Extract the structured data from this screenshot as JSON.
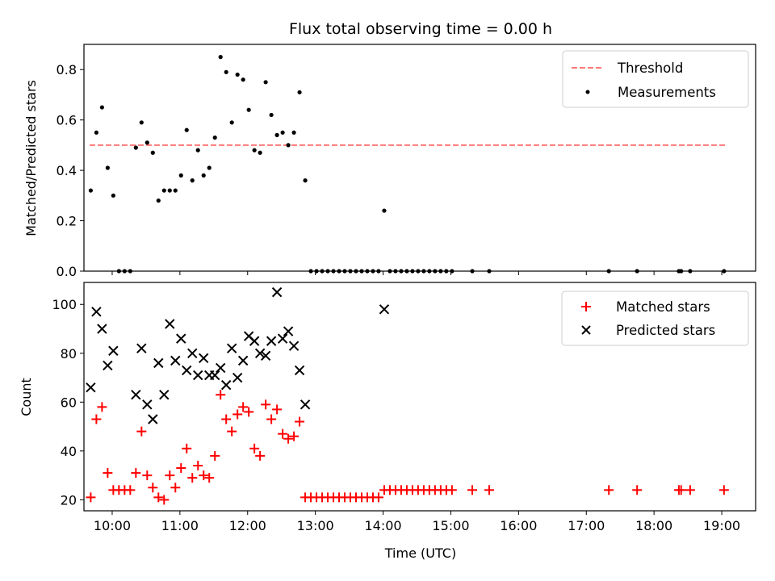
{
  "chart_data": [
    {
      "type": "scatter",
      "title": "Flux total observing time = 0.00 h",
      "xlabel": "",
      "ylabel": "Matched/Predicted stars",
      "xlim": [
        "09:35",
        "19:30"
      ],
      "ylim": [
        0,
        0.9
      ],
      "yticks": [
        "0.0",
        "0.2",
        "0.4",
        "0.6",
        "0.8"
      ],
      "ytick_values": [
        0,
        0.2,
        0.4,
        0.6,
        0.8
      ],
      "grid": false,
      "legend": "top-right",
      "threshold": {
        "name": "Threshold",
        "value": 0.5,
        "x_range": [
          "09:40",
          "19:05"
        ],
        "color": "#ff7777"
      },
      "series": [
        {
          "name": "Measurements",
          "color": "#000000",
          "marker": "dot",
          "x": [
            "09:41",
            "09:46",
            "09:51",
            "09:56",
            "10:01",
            "10:06",
            "10:11",
            "10:16",
            "10:21",
            "10:26",
            "10:31",
            "10:36",
            "10:41",
            "10:46",
            "10:51",
            "10:56",
            "11:01",
            "11:06",
            "11:11",
            "11:16",
            "11:21",
            "11:26",
            "11:31",
            "11:36",
            "11:41",
            "11:46",
            "11:51",
            "11:56",
            "12:01",
            "12:06",
            "12:11",
            "12:16",
            "12:21",
            "12:26",
            "12:31",
            "12:36",
            "12:41",
            "12:46",
            "12:51",
            "12:56",
            "13:01",
            "13:06",
            "13:11",
            "13:16",
            "13:21",
            "13:26",
            "13:31",
            "13:36",
            "13:41",
            "13:46",
            "13:51",
            "13:56",
            "14:01",
            "14:06",
            "14:11",
            "14:16",
            "14:21",
            "14:26",
            "14:31",
            "14:36",
            "14:41",
            "14:46",
            "14:51",
            "14:56",
            "15:01",
            "15:19",
            "15:34",
            "17:20",
            "17:45",
            "18:22",
            "18:24",
            "18:32",
            "19:02"
          ],
          "y": [
            0.32,
            0.55,
            0.65,
            0.41,
            0.3,
            0.0,
            0.0,
            0.0,
            0.49,
            0.59,
            0.51,
            0.47,
            0.28,
            0.32,
            0.32,
            0.32,
            0.38,
            0.56,
            0.36,
            0.48,
            0.38,
            0.41,
            0.53,
            0.85,
            0.79,
            0.59,
            0.78,
            0.76,
            0.64,
            0.48,
            0.47,
            0.75,
            0.62,
            0.54,
            0.55,
            0.5,
            0.55,
            0.71,
            0.36,
            0.0,
            0.0,
            0.0,
            0.0,
            0.0,
            0.0,
            0.0,
            0.0,
            0.0,
            0.0,
            0.0,
            0.0,
            0.0,
            0.24,
            0.0,
            0.0,
            0.0,
            0.0,
            0.0,
            0.0,
            0.0,
            0.0,
            0.0,
            0.0,
            0.0,
            0.0,
            0.0,
            0.0,
            0.0,
            0.0,
            0.0,
            0.0,
            0.0,
            0.0
          ]
        }
      ]
    },
    {
      "type": "scatter",
      "title": "",
      "xlabel": "Time (UTC)",
      "ylabel": "Count",
      "xlim": [
        "09:35",
        "19:30"
      ],
      "ylim": [
        15.5,
        109
      ],
      "xticks": [
        "10:00",
        "11:00",
        "12:00",
        "13:00",
        "14:00",
        "15:00",
        "16:00",
        "17:00",
        "18:00",
        "19:00"
      ],
      "yticks": [
        "20",
        "40",
        "60",
        "80",
        "100"
      ],
      "ytick_values": [
        20,
        40,
        60,
        80,
        100
      ],
      "grid": false,
      "legend": "top-right",
      "series": [
        {
          "name": "Matched stars",
          "color": "#ff0000",
          "marker": "plus",
          "x": [
            "09:41",
            "09:46",
            "09:51",
            "09:56",
            "10:01",
            "10:06",
            "10:11",
            "10:16",
            "10:21",
            "10:26",
            "10:31",
            "10:36",
            "10:41",
            "10:46",
            "10:51",
            "10:56",
            "11:01",
            "11:06",
            "11:11",
            "11:16",
            "11:21",
            "11:26",
            "11:31",
            "11:36",
            "11:41",
            "11:46",
            "11:51",
            "11:56",
            "12:01",
            "12:06",
            "12:11",
            "12:16",
            "12:21",
            "12:26",
            "12:31",
            "12:36",
            "12:41",
            "12:46",
            "12:51",
            "12:56",
            "13:01",
            "13:06",
            "13:11",
            "13:16",
            "13:21",
            "13:26",
            "13:31",
            "13:36",
            "13:41",
            "13:46",
            "13:51",
            "13:56",
            "14:01",
            "14:06",
            "14:11",
            "14:16",
            "14:21",
            "14:26",
            "14:31",
            "14:36",
            "14:41",
            "14:46",
            "14:51",
            "14:56",
            "15:01",
            "15:19",
            "15:34",
            "17:20",
            "17:45",
            "18:22",
            "18:24",
            "18:32",
            "19:02"
          ],
          "y": [
            21,
            53,
            58,
            31,
            24,
            24,
            24,
            24,
            31,
            48,
            30,
            25,
            21,
            20,
            30,
            25,
            33,
            41,
            29,
            34,
            30,
            29,
            38,
            63,
            53,
            48,
            55,
            58,
            56,
            41,
            38,
            59,
            53,
            57,
            47,
            45,
            46,
            52,
            21,
            21,
            21,
            21,
            21,
            21,
            21,
            21,
            21,
            21,
            21,
            21,
            21,
            21,
            24,
            24,
            24,
            24,
            24,
            24,
            24,
            24,
            24,
            24,
            24,
            24,
            24,
            24,
            24,
            24,
            24,
            24,
            24,
            24,
            24
          ]
        },
        {
          "name": "Predicted stars",
          "color": "#000000",
          "marker": "x",
          "x": [
            "09:41",
            "09:46",
            "09:51",
            "09:56",
            "10:01",
            "10:21",
            "10:26",
            "10:31",
            "10:36",
            "10:41",
            "10:46",
            "10:51",
            "10:56",
            "11:01",
            "11:06",
            "11:11",
            "11:16",
            "11:21",
            "11:26",
            "11:31",
            "11:36",
            "11:41",
            "11:46",
            "11:51",
            "11:56",
            "12:01",
            "12:06",
            "12:11",
            "12:16",
            "12:21",
            "12:26",
            "12:31",
            "12:36",
            "12:41",
            "12:46",
            "12:51",
            "14:01"
          ],
          "y": [
            66,
            97,
            90,
            75,
            81,
            63,
            82,
            59,
            53,
            76,
            63,
            92,
            77,
            86,
            73,
            80,
            71,
            78,
            71,
            71,
            74,
            67,
            82,
            70,
            77,
            87,
            85,
            80,
            79,
            85,
            105,
            86,
            89,
            83,
            73,
            59,
            98
          ]
        }
      ]
    }
  ]
}
